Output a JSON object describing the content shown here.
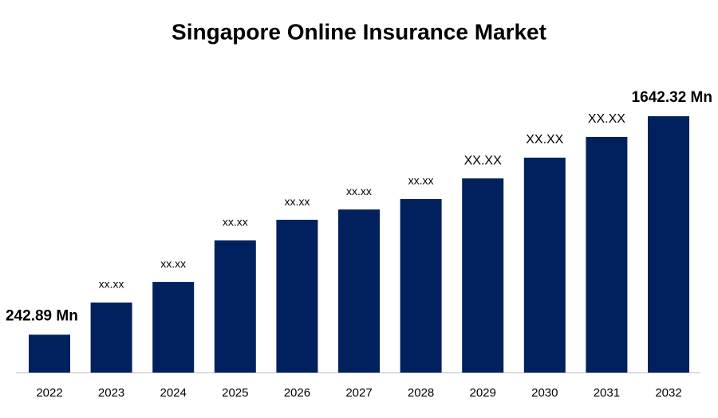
{
  "chart_data": {
    "type": "bar",
    "title": "Singapore Online Insurance Market",
    "categories": [
      "2022",
      "2023",
      "2024",
      "2025",
      "2026",
      "2027",
      "2028",
      "2029",
      "2030",
      "2031",
      "2032"
    ],
    "values": [
      242.89,
      449,
      581,
      847,
      979,
      1045,
      1112,
      1244,
      1377,
      1510,
      1642.32
    ],
    "value_labels": [
      "242.89 Mn",
      "xx.xx",
      "xx.xx",
      "xx.xx",
      "xx.xx",
      "xx.xx",
      "xx.xx",
      "XX.XX",
      "XX.XX",
      "XX.XX",
      "1642.32 Mn"
    ],
    "color": "#00215e"
  }
}
